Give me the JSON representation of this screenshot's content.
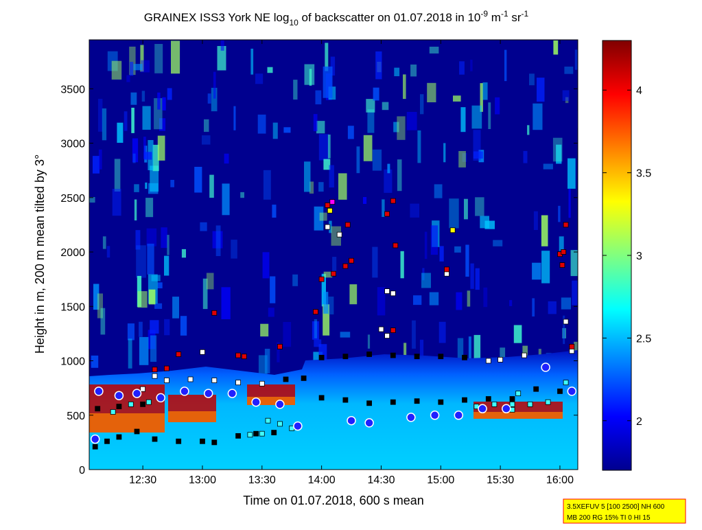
{
  "chart_data": {
    "type": "heatmap",
    "title_parts": {
      "prefix": "GRAINEX ISS3 York NE log",
      "log_base": "10",
      "middle": " of backscatter on 01.07.2018 in 10",
      "exp1": "-9",
      "unit1": " m",
      "exp2": "-1",
      "unit2": " sr",
      "exp3": "-1"
    },
    "xlabel": "Time on 01.07.2018, 600 s mean",
    "ylabel": "Height in m, 200 m mean tilted by 3°",
    "x_tick_labels": [
      "12:30",
      "13:00",
      "13:30",
      "14:00",
      "14:30",
      "15:00",
      "15:30",
      "16:00"
    ],
    "x_tick_values": [
      12.5,
      13.0,
      13.5,
      14.0,
      14.5,
      15.0,
      15.5,
      16.0
    ],
    "xlim": [
      12.05,
      16.15
    ],
    "y_tick_labels": [
      "0",
      "500",
      "1000",
      "1500",
      "2000",
      "2500",
      "3000",
      "3500"
    ],
    "y_tick_values": [
      0,
      500,
      1000,
      1500,
      2000,
      2500,
      3000,
      3500
    ],
    "ylim": [
      0,
      3950
    ],
    "colorbar": {
      "tick_labels": [
        "2",
        "2.5",
        "3",
        "3.5",
        "4"
      ],
      "tick_values": [
        2,
        2.5,
        3,
        3.5,
        4
      ],
      "range": [
        1.7,
        4.3
      ]
    },
    "colorscale": [
      "#00008f",
      "#0000ff",
      "#0080ff",
      "#00ffff",
      "#80ff80",
      "#ffff00",
      "#ff8000",
      "#ff0000",
      "#800000"
    ],
    "markers": {
      "black": [
        [
          12.1,
          210
        ],
        [
          12.2,
          260
        ],
        [
          12.3,
          300
        ],
        [
          12.45,
          350
        ],
        [
          12.6,
          280
        ],
        [
          12.8,
          260
        ],
        [
          13.0,
          260
        ],
        [
          13.1,
          250
        ],
        [
          13.3,
          310
        ],
        [
          13.45,
          330
        ],
        [
          13.6,
          340
        ],
        [
          12.12,
          560
        ],
        [
          12.3,
          580
        ],
        [
          12.5,
          600
        ],
        [
          13.7,
          830
        ],
        [
          13.85,
          840
        ],
        [
          14.0,
          660
        ],
        [
          14.2,
          640
        ],
        [
          14.4,
          610
        ],
        [
          14.6,
          620
        ],
        [
          14.8,
          630
        ],
        [
          15.0,
          620
        ],
        [
          15.2,
          640
        ],
        [
          15.4,
          650
        ],
        [
          15.6,
          650
        ],
        [
          15.8,
          740
        ],
        [
          16.0,
          720
        ],
        [
          14.0,
          1030
        ],
        [
          14.2,
          1040
        ],
        [
          14.4,
          1060
        ],
        [
          14.6,
          1050
        ],
        [
          14.8,
          1040
        ],
        [
          15.0,
          1040
        ],
        [
          15.2,
          1030
        ]
      ],
      "white": [
        [
          12.5,
          740
        ],
        [
          12.7,
          820
        ],
        [
          12.9,
          830
        ],
        [
          13.1,
          820
        ],
        [
          13.3,
          800
        ],
        [
          13.5,
          790
        ],
        [
          12.6,
          860
        ],
        [
          13.0,
          1080
        ],
        [
          14.05,
          2230
        ],
        [
          14.15,
          2160
        ],
        [
          14.55,
          1640
        ],
        [
          14.6,
          1620
        ],
        [
          15.05,
          1800
        ],
        [
          15.4,
          1000
        ],
        [
          15.5,
          1010
        ],
        [
          15.7,
          1050
        ],
        [
          16.05,
          1360
        ],
        [
          16.1,
          1090
        ],
        [
          14.5,
          1290
        ],
        [
          14.55,
          1230
        ]
      ],
      "red": [
        [
          12.6,
          920
        ],
        [
          12.7,
          930
        ],
        [
          12.8,
          1060
        ],
        [
          13.1,
          1440
        ],
        [
          13.3,
          1050
        ],
        [
          13.35,
          1040
        ],
        [
          13.65,
          1130
        ],
        [
          13.95,
          1450
        ],
        [
          14.0,
          1750
        ],
        [
          14.1,
          1800
        ],
        [
          14.2,
          1870
        ],
        [
          14.25,
          1920
        ],
        [
          14.05,
          2430
        ],
        [
          14.22,
          2250
        ],
        [
          14.55,
          2350
        ],
        [
          14.6,
          2470
        ],
        [
          14.62,
          2060
        ],
        [
          14.6,
          1280
        ],
        [
          15.05,
          1840
        ],
        [
          16.0,
          1980
        ],
        [
          16.03,
          2000
        ],
        [
          16.05,
          2250
        ],
        [
          16.02,
          1880
        ],
        [
          16.1,
          1130
        ]
      ],
      "cyan": [
        [
          12.25,
          530
        ],
        [
          12.4,
          600
        ],
        [
          12.55,
          620
        ],
        [
          13.55,
          450
        ],
        [
          13.65,
          420
        ],
        [
          13.75,
          380
        ],
        [
          13.4,
          320
        ],
        [
          13.5,
          330
        ],
        [
          15.3,
          580
        ],
        [
          15.45,
          600
        ],
        [
          15.6,
          600
        ],
        [
          15.75,
          600
        ],
        [
          15.9,
          620
        ],
        [
          16.05,
          800
        ],
        [
          15.65,
          700
        ],
        [
          15.6,
          550
        ]
      ],
      "yellow": [
        [
          14.07,
          2380
        ],
        [
          15.1,
          2200
        ]
      ],
      "magenta": [
        [
          14.09,
          2460
        ]
      ],
      "circles": [
        [
          12.13,
          720
        ],
        [
          12.3,
          680
        ],
        [
          12.45,
          700
        ],
        [
          12.65,
          660
        ],
        [
          12.85,
          720
        ],
        [
          13.05,
          700
        ],
        [
          13.25,
          700
        ],
        [
          13.45,
          620
        ],
        [
          13.65,
          600
        ],
        [
          12.1,
          280
        ],
        [
          13.8,
          400
        ],
        [
          14.75,
          480
        ],
        [
          14.95,
          500
        ],
        [
          15.15,
          500
        ],
        [
          15.35,
          560
        ],
        [
          15.55,
          560
        ],
        [
          15.88,
          940
        ],
        [
          16.1,
          720
        ],
        [
          14.25,
          450
        ],
        [
          14.4,
          430
        ]
      ]
    }
  },
  "info_box": {
    "line1": "3.5XEFUV 5 [100 2500] NH 600",
    "line2": "MB 200 RG 15% TI 0 HI 15"
  }
}
